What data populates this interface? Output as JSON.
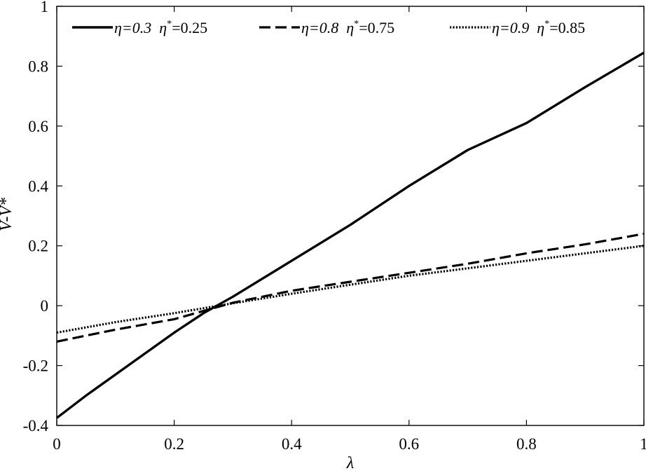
{
  "chart_data": {
    "type": "line",
    "title": "",
    "xlabel": "λ",
    "ylabel": "V-V*",
    "xlim": [
      0,
      1
    ],
    "ylim": [
      -0.4,
      1
    ],
    "grid": false,
    "legend_position": "top",
    "x_ticks": [
      {
        "value": 0,
        "label": "0"
      },
      {
        "value": 0.2,
        "label": "0.2"
      },
      {
        "value": 0.4,
        "label": "0.4"
      },
      {
        "value": 0.6,
        "label": "0.6"
      },
      {
        "value": 0.8,
        "label": "0.8"
      },
      {
        "value": 1,
        "label": "1"
      }
    ],
    "y_ticks": [
      {
        "value": -0.4,
        "label": "-0.4"
      },
      {
        "value": -0.2,
        "label": "-0.2"
      },
      {
        "value": 0,
        "label": "0"
      },
      {
        "value": 0.2,
        "label": "0.2"
      },
      {
        "value": 0.4,
        "label": "0.4"
      },
      {
        "value": 0.6,
        "label": "0.6"
      },
      {
        "value": 0.8,
        "label": "0.8"
      },
      {
        "value": 1,
        "label": "1"
      }
    ],
    "series": [
      {
        "name": "η=0.3  η*=0.25",
        "eta": "η=0.3",
        "eta_star": "=0.25",
        "line_style": "solid",
        "color": "#000000",
        "x": [
          0,
          0.05,
          0.1,
          0.15,
          0.2,
          0.25,
          0.3,
          0.35,
          0.4,
          0.5,
          0.6,
          0.7,
          0.8,
          0.9,
          1.0
        ],
        "y": [
          -0.375,
          -0.3,
          -0.23,
          -0.16,
          -0.09,
          -0.025,
          0.03,
          0.09,
          0.15,
          0.27,
          0.4,
          0.52,
          0.61,
          0.73,
          0.845
        ]
      },
      {
        "name": "η=0.8  η*=0.75",
        "eta": "η=0.8",
        "eta_star": "=0.75",
        "line_style": "dashed",
        "color": "#000000",
        "x": [
          0,
          0.1,
          0.2,
          0.3,
          0.4,
          0.5,
          0.6,
          0.7,
          0.8,
          0.9,
          1.0
        ],
        "y": [
          -0.12,
          -0.08,
          -0.045,
          0.01,
          0.05,
          0.08,
          0.11,
          0.14,
          0.175,
          0.205,
          0.24
        ]
      },
      {
        "name": "η=0.9  η*=0.85",
        "eta": "η=0.9",
        "eta_star": "=0.85",
        "line_style": "dotted",
        "color": "#000000",
        "x": [
          0,
          0.1,
          0.2,
          0.3,
          0.4,
          0.5,
          0.6,
          0.7,
          0.8,
          0.9,
          1.0
        ],
        "y": [
          -0.09,
          -0.055,
          -0.025,
          0.008,
          0.04,
          0.07,
          0.1,
          0.125,
          0.15,
          0.175,
          0.2
        ]
      }
    ]
  }
}
